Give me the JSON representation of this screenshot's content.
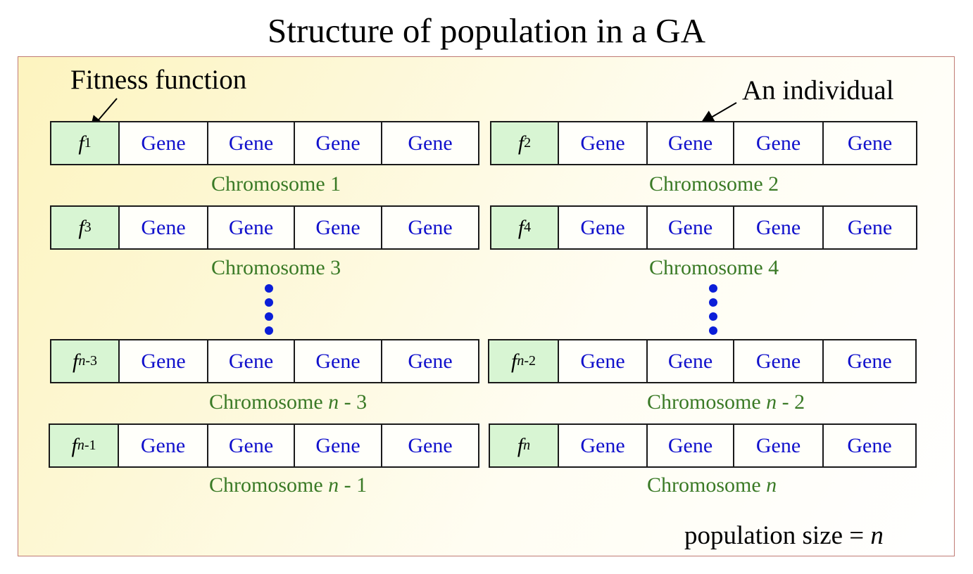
{
  "title": "Structure of population in a GA",
  "labels": {
    "fitness_function": "Fitness function",
    "an_individual": "An individual"
  },
  "gene_label": "Gene",
  "chromosomes": [
    {
      "f": "f",
      "sub": "1",
      "sub_italic": "",
      "sub_rest": "",
      "name": "Chromosome 1"
    },
    {
      "f": "f",
      "sub": "2",
      "sub_italic": "",
      "sub_rest": "",
      "name": "Chromosome 2"
    },
    {
      "f": "f",
      "sub": "3",
      "sub_italic": "",
      "sub_rest": "",
      "name": "Chromosome 3"
    },
    {
      "f": "f",
      "sub": "4",
      "sub_italic": "",
      "sub_rest": "",
      "name": "Chromosome 4"
    },
    {
      "f": "f",
      "sub": "",
      "sub_italic": "n",
      "sub_rest": "-3",
      "name_pre": "Chromosome ",
      "name_var": "n",
      "name_post": " - 3"
    },
    {
      "f": "f",
      "sub": "",
      "sub_italic": "n",
      "sub_rest": "-2",
      "name_pre": "Chromosome ",
      "name_var": "n",
      "name_post": " - 2"
    },
    {
      "f": "f",
      "sub": "",
      "sub_italic": "n",
      "sub_rest": "-1",
      "name_pre": "Chromosome ",
      "name_var": "n",
      "name_post": " - 1"
    },
    {
      "f": "f",
      "sub": "",
      "sub_italic": "n",
      "sub_rest": "",
      "name_pre": "Chromosome ",
      "name_var": "n",
      "name_post": ""
    }
  ],
  "population_size": {
    "prefix": "population size = ",
    "var": "n"
  },
  "colors": {
    "gene_text": "#1111cc",
    "chromosome_text": "#3a7a26",
    "fitness_cell": "#d8f5d3",
    "dots": "#0b1ed8",
    "panel_border": "#c07b74"
  }
}
